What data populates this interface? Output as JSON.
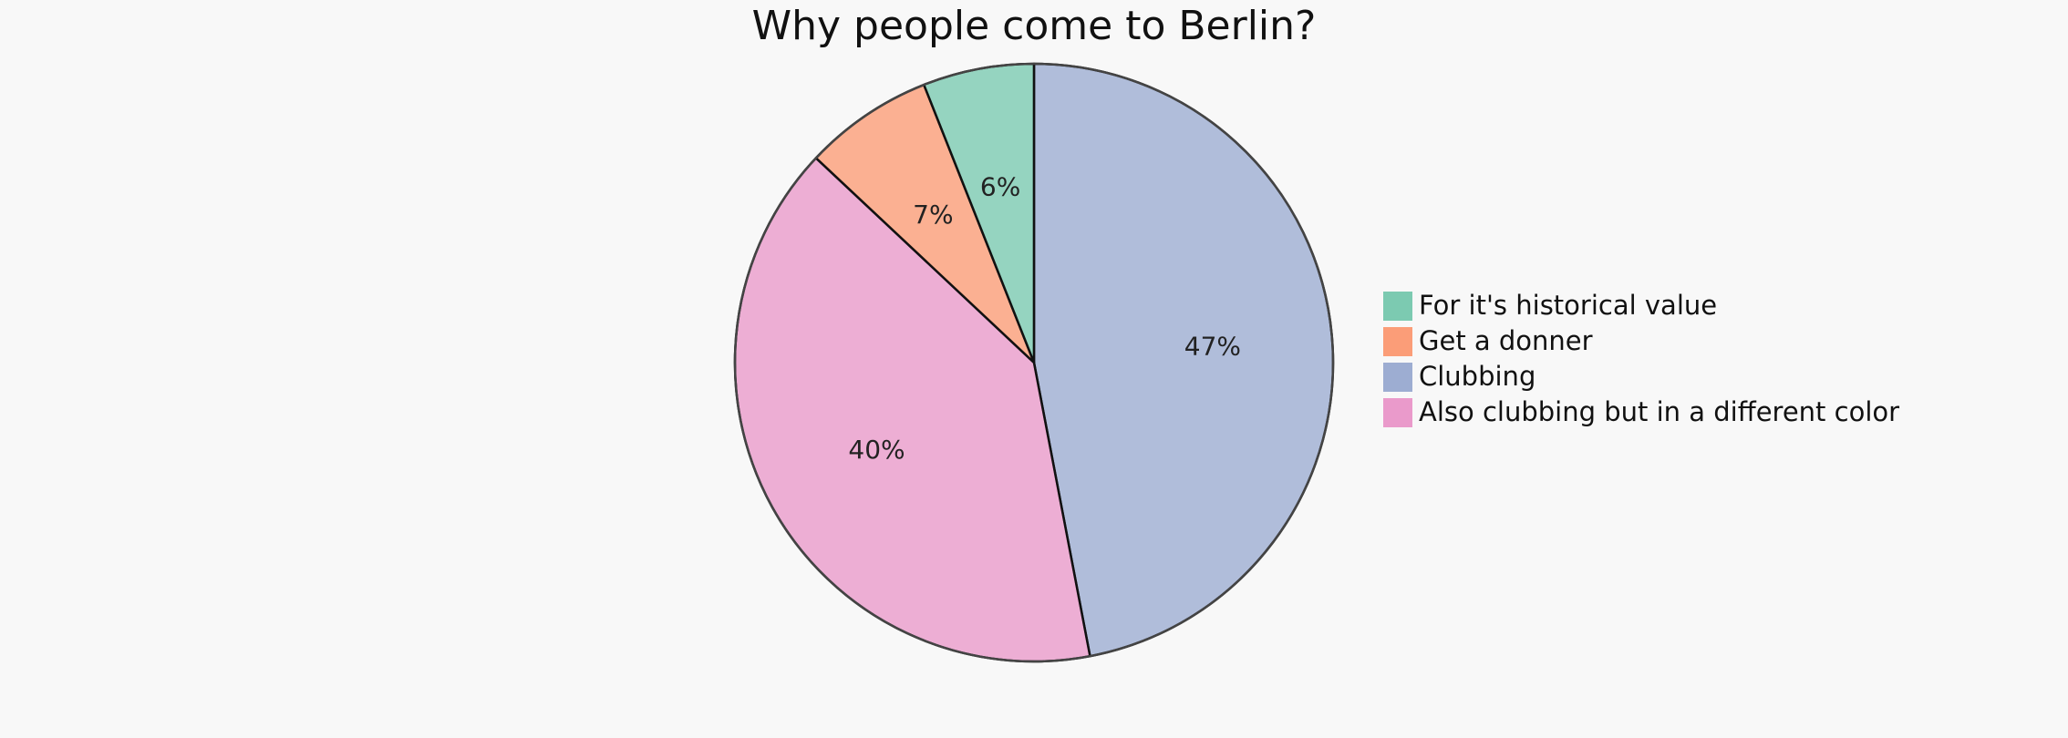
{
  "chart_data": {
    "type": "pie",
    "title": "Why people come to Berlin?",
    "start_angle": "top, clockwise",
    "legend_position": "right",
    "slices": [
      {
        "label": "Clubbing",
        "value": 47,
        "value_label": "47%",
        "color": "#8da0cb"
      },
      {
        "label": "Also clubbing but in a different color",
        "value": 40,
        "value_label": "40%",
        "color": "#e78ac3"
      },
      {
        "label": "Get a donner",
        "value": 7,
        "value_label": "7%",
        "color": "#fc8d62"
      },
      {
        "label": "For it's historical value",
        "value": 6,
        "value_label": "6%",
        "color": "#66c2a5"
      }
    ],
    "legend": [
      {
        "label": "For it's historical value",
        "color": "#66c2a5"
      },
      {
        "label": "Get a donner",
        "color": "#fc8d62"
      },
      {
        "label": "Clubbing",
        "color": "#8da0cb"
      },
      {
        "label": "Also clubbing but in a different color",
        "color": "#e78ac3"
      }
    ]
  }
}
